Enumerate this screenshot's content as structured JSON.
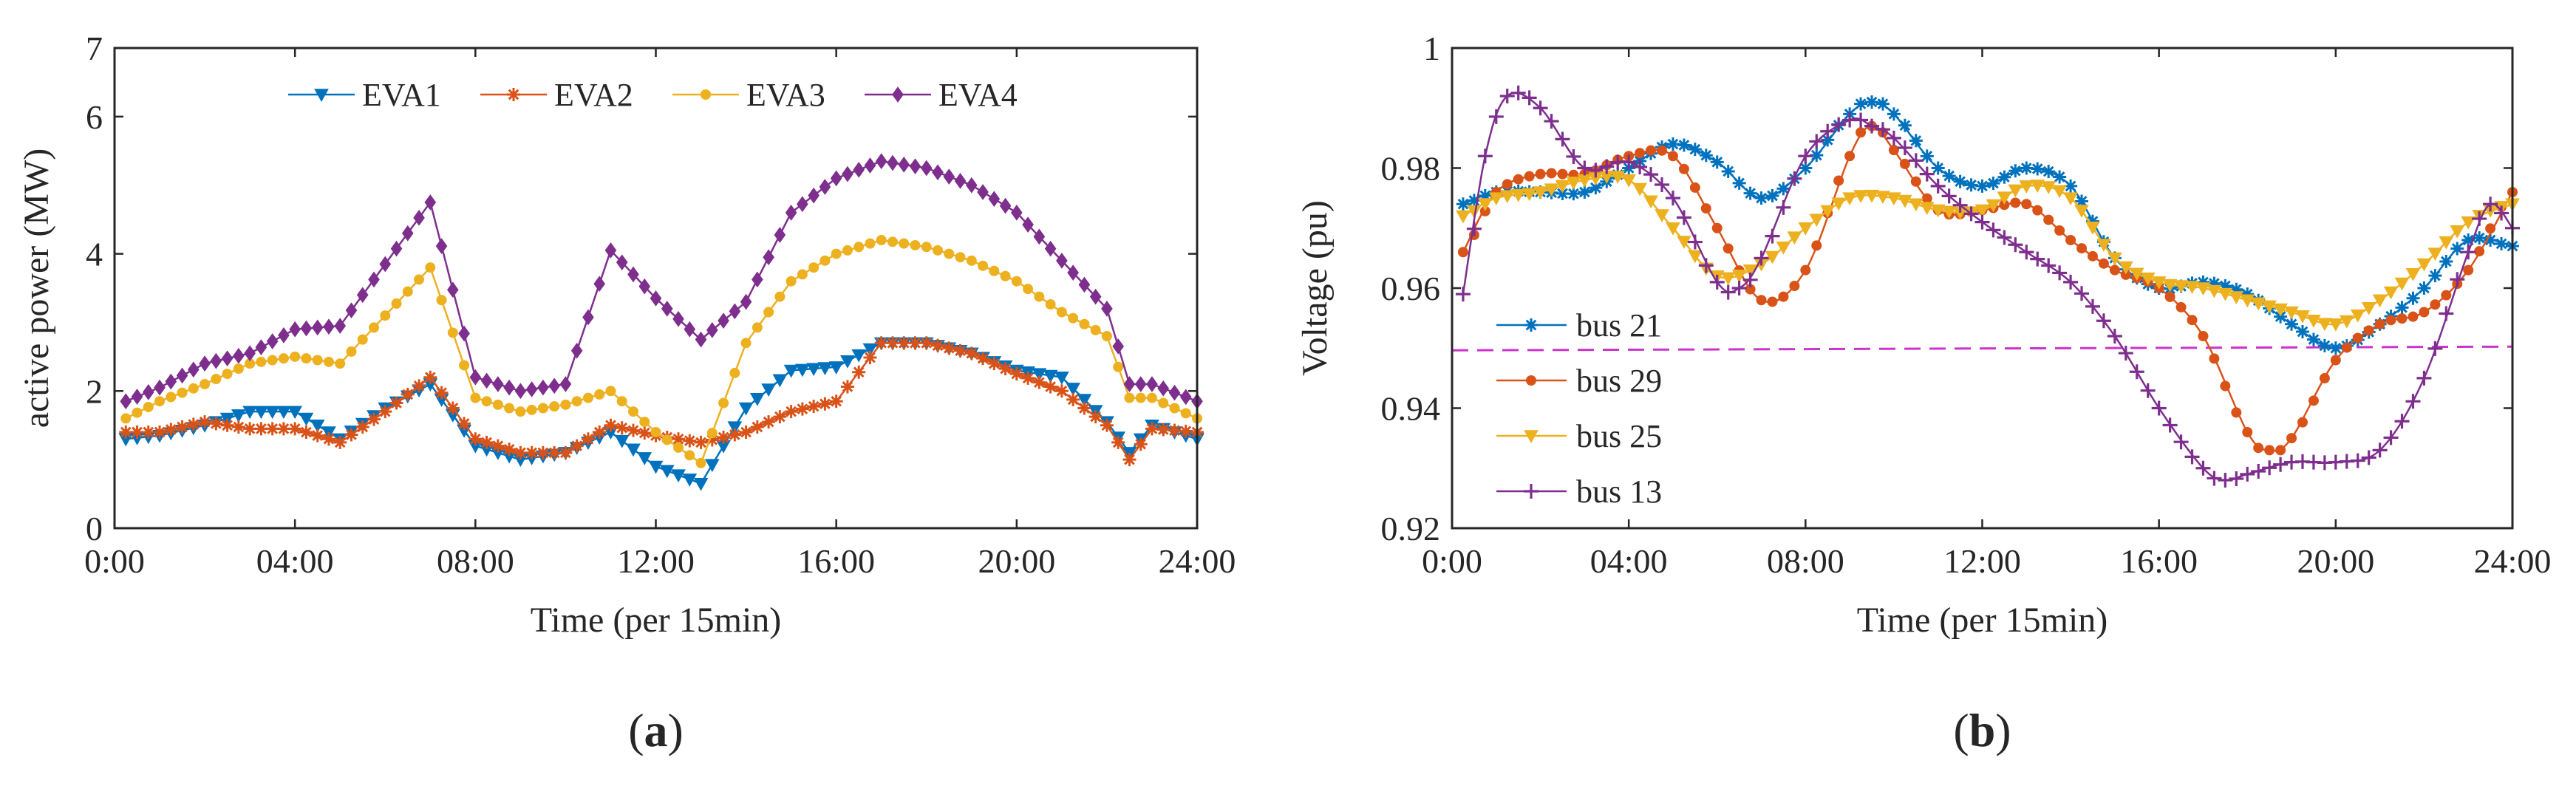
{
  "chart_data": [
    {
      "panel": "(a)",
      "panel_letter": "a",
      "type": "line",
      "title": "",
      "xlabel": "Time (per 15min)",
      "ylabel": "active power (MW)",
      "xlim": [
        0,
        24
      ],
      "ylim": [
        0,
        7
      ],
      "xticks": [
        "0:00",
        "04:00",
        "08:00",
        "12:00",
        "16:00",
        "20:00",
        "24:00"
      ],
      "yticks": [
        "0",
        "2",
        "4",
        "6",
        "7"
      ],
      "grid": false,
      "legend": "top, horizontal",
      "series": [
        {
          "name": "EVA1",
          "color": "#0072BD",
          "marker": "triangle-down",
          "x": [
            0.25,
            1,
            2,
            3,
            4,
            5,
            6,
            7,
            8,
            9,
            10,
            11,
            12,
            13,
            14,
            15,
            16,
            17,
            18,
            19,
            20,
            21,
            22,
            22.5,
            23,
            24
          ],
          "y": [
            1.3,
            1.35,
            1.5,
            1.7,
            1.7,
            1.3,
            1.75,
            2.1,
            1.2,
            1.0,
            1.1,
            1.4,
            0.9,
            0.65,
            1.75,
            2.3,
            2.35,
            2.7,
            2.7,
            2.55,
            2.3,
            2.2,
            1.55,
            1.1,
            1.5,
            1.3
          ]
        },
        {
          "name": "EVA2",
          "color": "#D95319",
          "marker": "asterisk",
          "x": [
            0.25,
            1,
            2,
            3,
            4,
            5,
            6,
            7,
            8,
            9,
            10,
            11,
            12,
            13,
            14,
            15,
            16,
            17,
            18,
            19,
            20,
            21,
            22,
            22.5,
            23,
            24
          ],
          "y": [
            1.4,
            1.4,
            1.55,
            1.45,
            1.45,
            1.25,
            1.7,
            2.2,
            1.3,
            1.1,
            1.1,
            1.5,
            1.35,
            1.25,
            1.4,
            1.7,
            1.85,
            2.7,
            2.7,
            2.55,
            2.25,
            2.0,
            1.5,
            1.0,
            1.45,
            1.4
          ]
        },
        {
          "name": "EVA3",
          "color": "#EDB120",
          "marker": "circle",
          "x": [
            0.25,
            1,
            2,
            3,
            4,
            5,
            6,
            7,
            8,
            9,
            10,
            11,
            12,
            13,
            14,
            15,
            16,
            17,
            18,
            19,
            20,
            21,
            22,
            22.5,
            23,
            24
          ],
          "y": [
            1.6,
            1.85,
            2.1,
            2.4,
            2.5,
            2.4,
            3.1,
            3.8,
            1.9,
            1.7,
            1.8,
            2.0,
            1.4,
            0.95,
            2.7,
            3.6,
            4.0,
            4.2,
            4.1,
            3.9,
            3.6,
            3.15,
            2.8,
            1.9,
            1.9,
            1.6
          ]
        },
        {
          "name": "EVA4",
          "color": "#7E2F8E",
          "marker": "diamond",
          "x": [
            0.25,
            1,
            2,
            3,
            4,
            5,
            6,
            7,
            8,
            9,
            10,
            11,
            12,
            13,
            14,
            15,
            16,
            17,
            18,
            19,
            20,
            21,
            22,
            22.5,
            23,
            24
          ],
          "y": [
            1.85,
            2.05,
            2.4,
            2.55,
            2.9,
            2.95,
            3.85,
            4.75,
            2.2,
            2.0,
            2.1,
            4.05,
            3.35,
            2.75,
            3.3,
            4.6,
            5.1,
            5.35,
            5.25,
            5.0,
            4.6,
            3.9,
            3.2,
            2.1,
            2.1,
            1.85
          ]
        }
      ]
    },
    {
      "panel": "(b)",
      "panel_letter": "b",
      "type": "line",
      "title": "",
      "xlabel": "Time (per 15min)",
      "ylabel": "Voltage (pu)",
      "xlim": [
        0,
        24
      ],
      "ylim": [
        0.92,
        1.0
      ],
      "xticks": [
        "0:00",
        "04:00",
        "08:00",
        "12:00",
        "16:00",
        "20:00",
        "24:00"
      ],
      "yticks": [
        "0.92",
        "0.94",
        "0.96",
        "0.98",
        "1"
      ],
      "grid": false,
      "legend": "bottom-left",
      "reference_line": {
        "y": 0.95,
        "color": "#CC33CC",
        "style": "dashed"
      },
      "series": [
        {
          "name": "bus 21",
          "color": "#0072BD",
          "marker": "asterisk",
          "x": [
            0.25,
            1,
            2,
            3,
            4,
            5,
            6,
            7,
            8,
            9,
            9.5,
            10,
            11,
            12,
            13,
            14,
            15,
            16,
            17,
            18,
            19,
            20,
            21,
            22,
            23,
            24
          ],
          "y": [
            0.974,
            0.976,
            0.976,
            0.976,
            0.98,
            0.984,
            0.981,
            0.975,
            0.98,
            0.989,
            0.991,
            0.989,
            0.98,
            0.977,
            0.98,
            0.977,
            0.965,
            0.96,
            0.961,
            0.959,
            0.954,
            0.95,
            0.954,
            0.96,
            0.968,
            0.967
          ]
        },
        {
          "name": "bus 29",
          "color": "#D95319",
          "marker": "circle",
          "x": [
            0.25,
            1,
            2,
            3,
            4,
            5,
            6,
            7,
            8,
            9,
            9.5,
            10,
            11,
            12,
            13,
            14,
            15,
            16,
            17,
            18,
            18.5,
            19,
            20,
            21,
            22,
            23,
            24
          ],
          "y": [
            0.966,
            0.976,
            0.979,
            0.979,
            0.982,
            0.982,
            0.97,
            0.958,
            0.963,
            0.982,
            0.987,
            0.983,
            0.973,
            0.973,
            0.974,
            0.968,
            0.963,
            0.96,
            0.952,
            0.936,
            0.933,
            0.935,
            0.948,
            0.954,
            0.956,
            0.963,
            0.976
          ]
        },
        {
          "name": "bus 25",
          "color": "#EDB120",
          "marker": "triangle-down",
          "x": [
            0.25,
            1,
            2,
            3,
            4,
            5,
            6,
            7,
            8,
            9,
            10,
            11,
            12,
            13,
            14,
            15,
            16,
            17,
            18,
            19,
            20,
            21,
            22,
            23,
            24
          ],
          "y": [
            0.972,
            0.975,
            0.976,
            0.978,
            0.978,
            0.97,
            0.962,
            0.964,
            0.97,
            0.975,
            0.975,
            0.973,
            0.973,
            0.977,
            0.975,
            0.965,
            0.961,
            0.96,
            0.958,
            0.956,
            0.954,
            0.958,
            0.964,
            0.971,
            0.974
          ]
        },
        {
          "name": "bus 13",
          "color": "#7E2F8E",
          "marker": "plus",
          "x": [
            0.25,
            0.75,
            1.25,
            2,
            3,
            4,
            5,
            6,
            6.5,
            7,
            8,
            9,
            9.5,
            10,
            11,
            12,
            13,
            14,
            15,
            16,
            17,
            17.5,
            18,
            19,
            20,
            21,
            22,
            23,
            23.5,
            24
          ],
          "y": [
            0.959,
            0.982,
            0.992,
            0.99,
            0.98,
            0.981,
            0.975,
            0.961,
            0.96,
            0.965,
            0.982,
            0.988,
            0.987,
            0.985,
            0.977,
            0.971,
            0.966,
            0.961,
            0.952,
            0.94,
            0.93,
            0.928,
            0.929,
            0.931,
            0.931,
            0.933,
            0.945,
            0.966,
            0.974,
            0.97
          ]
        }
      ]
    }
  ]
}
